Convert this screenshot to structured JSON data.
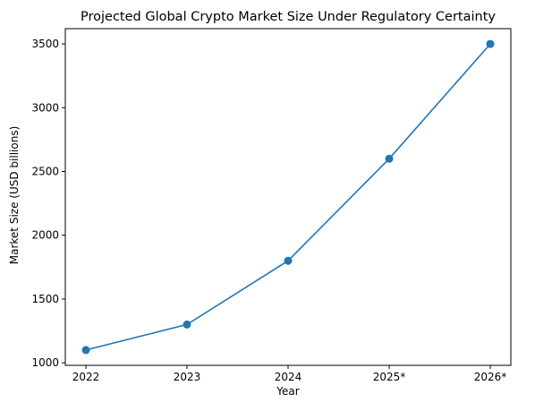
{
  "chart_data": {
    "type": "line",
    "title": "Projected Global Crypto Market Size Under Regulatory Certainty",
    "xlabel": "Year",
    "ylabel": "Market Size (USD billions)",
    "categories": [
      "2022",
      "2023",
      "2024",
      "2025*",
      "2026*"
    ],
    "series": [
      {
        "values": [
          1100,
          1300,
          1800,
          2600,
          3500
        ],
        "color": "#1f77b4",
        "marker": "circle"
      }
    ],
    "yticks": [
      1000,
      1500,
      2000,
      2500,
      3000,
      3500
    ],
    "ylim": [
      980,
      3620
    ],
    "grid": false,
    "legend": "none"
  }
}
